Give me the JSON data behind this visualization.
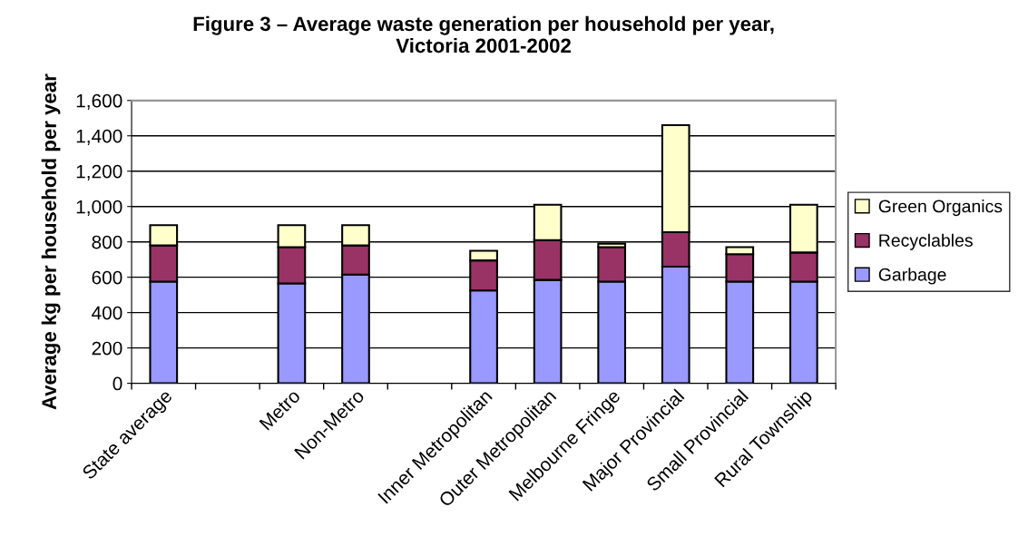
{
  "chart_data": {
    "type": "bar",
    "stacked": true,
    "title": "Figure 3 – Average waste generation per household per year,\nVictoria 2001-2002",
    "ylabel": "Average kg per household per year",
    "categories": [
      "State average",
      null,
      "Metro",
      "Non-Metro",
      null,
      "Inner Metropolitan",
      "Outer Metropolitan",
      "Melbourne Fringe",
      "Major Provincial",
      "Small Provincial",
      "Rural Township"
    ],
    "series": [
      {
        "name": "Garbage",
        "color": "#9999ff",
        "values": [
          575,
          null,
          565,
          615,
          null,
          525,
          585,
          575,
          660,
          575,
          575
        ]
      },
      {
        "name": "Recyclables",
        "color": "#993366",
        "values": [
          205,
          null,
          205,
          165,
          null,
          170,
          225,
          195,
          195,
          155,
          165
        ]
      },
      {
        "name": "Green Organics",
        "color": "#ffffcc",
        "values": [
          115,
          null,
          125,
          115,
          null,
          55,
          200,
          20,
          605,
          40,
          270
        ]
      }
    ],
    "ylim": [
      0,
      1600
    ],
    "yticks": [
      0,
      {
        "value": 200,
        "label": "200"
      },
      400,
      600,
      800,
      {
        "value": 1000,
        "label": "1,000"
      },
      {
        "value": 1200,
        "label": "1,200"
      },
      {
        "value": 1400,
        "label": "1,400"
      },
      {
        "value": 1600,
        "label": "1,600"
      }
    ],
    "grid": "y",
    "legend": "right"
  }
}
